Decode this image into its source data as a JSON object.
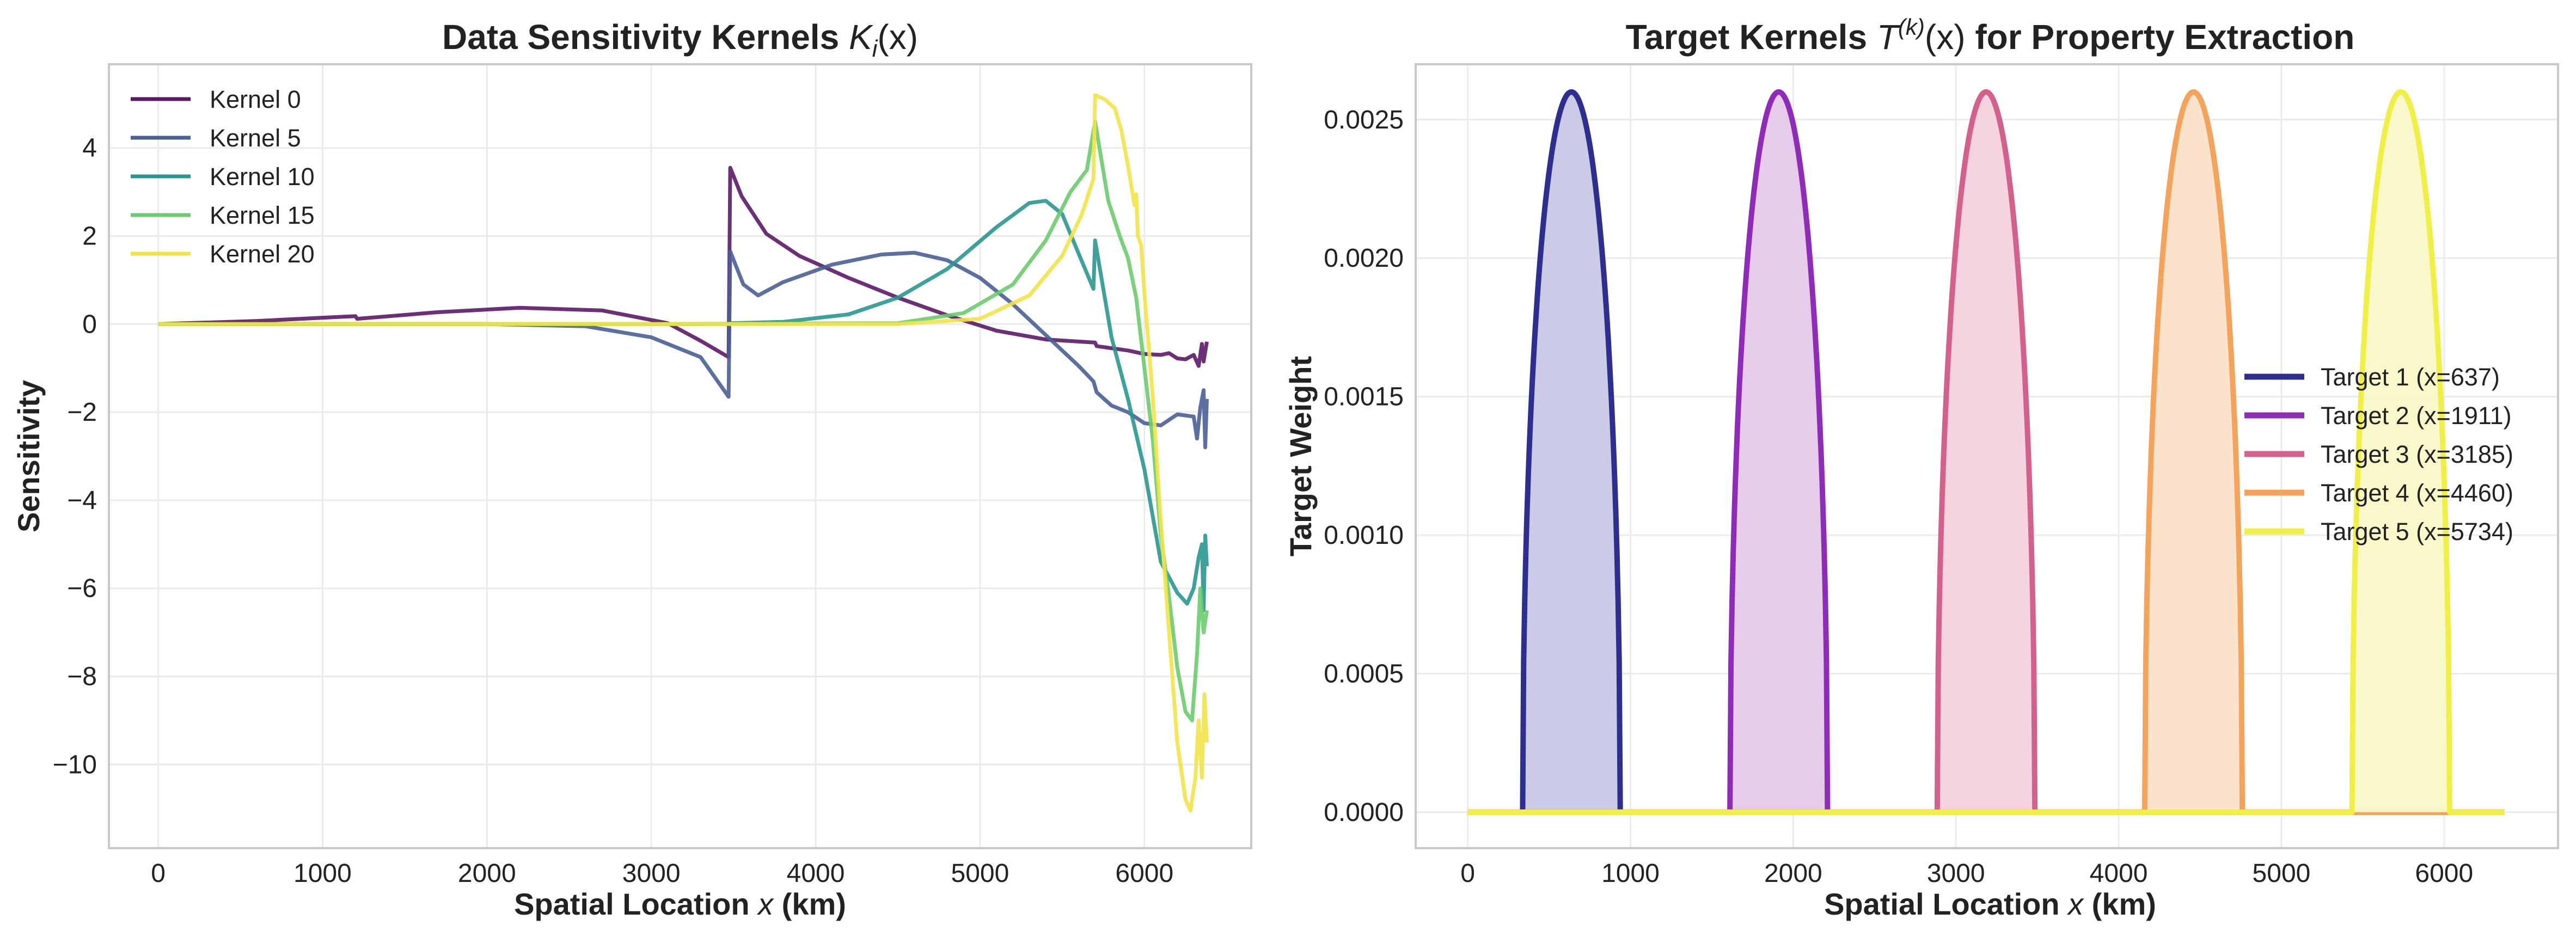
{
  "chart_data": [
    {
      "type": "line",
      "title_main": "Data Sensitivity Kernels ",
      "title_math": "K",
      "title_math_sub": "i",
      "title_math_tail": "(x)",
      "xlabel_pre": "Spatial Location ",
      "xlabel_var": "x",
      "xlabel_post": " (km)",
      "ylabel": "Sensitivity",
      "xlim": [
        -300,
        6650
      ],
      "ylim": [
        -11.9,
        5.9
      ],
      "xticks": [
        0,
        1000,
        2000,
        3000,
        4000,
        5000,
        6000
      ],
      "yticks": [
        4,
        2,
        0,
        -2,
        -4,
        -6,
        -8,
        -10
      ],
      "ytick_labels": [
        "4",
        "2",
        "0",
        "−2",
        "−4",
        "−6",
        "−8",
        "−10"
      ],
      "grid": true,
      "legend_position": "upper-left",
      "series": [
        {
          "name": "Kernel 0",
          "color": "#5b1a66",
          "points": [
            [
              0,
              0
            ],
            [
              600,
              0.07
            ],
            [
              1200,
              0.18
            ],
            [
              1210,
              0.12
            ],
            [
              1700,
              0.27
            ],
            [
              2200,
              0.37
            ],
            [
              2700,
              0.31
            ],
            [
              3100,
              0.02
            ],
            [
              3300,
              -0.38
            ],
            [
              3470,
              -0.75
            ],
            [
              3480,
              3.55
            ],
            [
              3550,
              2.9
            ],
            [
              3700,
              2.05
            ],
            [
              3900,
              1.55
            ],
            [
              4200,
              1.05
            ],
            [
              4500,
              0.6
            ],
            [
              4800,
              0.2
            ],
            [
              5100,
              -0.15
            ],
            [
              5400,
              -0.35
            ],
            [
              5700,
              -0.42
            ],
            [
              5710,
              -0.5
            ],
            [
              5900,
              -0.6
            ],
            [
              6000,
              -0.68
            ],
            [
              6100,
              -0.7
            ],
            [
              6150,
              -0.66
            ],
            [
              6200,
              -0.78
            ],
            [
              6250,
              -0.8
            ],
            [
              6300,
              -0.7
            ],
            [
              6330,
              -0.95
            ],
            [
              6350,
              -0.45
            ],
            [
              6360,
              -0.85
            ],
            [
              6380,
              -0.4
            ]
          ]
        },
        {
          "name": "Kernel 5",
          "color": "#4a5f93",
          "points": [
            [
              0,
              0
            ],
            [
              1000,
              0
            ],
            [
              2000,
              0
            ],
            [
              2600,
              -0.05
            ],
            [
              3000,
              -0.3
            ],
            [
              3300,
              -0.75
            ],
            [
              3470,
              -1.65
            ],
            [
              3480,
              1.65
            ],
            [
              3560,
              0.9
            ],
            [
              3650,
              0.65
            ],
            [
              3800,
              0.95
            ],
            [
              4100,
              1.35
            ],
            [
              4400,
              1.58
            ],
            [
              4600,
              1.62
            ],
            [
              4800,
              1.45
            ],
            [
              5000,
              1.05
            ],
            [
              5200,
              0.45
            ],
            [
              5400,
              -0.25
            ],
            [
              5600,
              -0.95
            ],
            [
              5690,
              -1.3
            ],
            [
              5710,
              -1.55
            ],
            [
              5800,
              -1.85
            ],
            [
              5900,
              -2.0
            ],
            [
              6000,
              -2.25
            ],
            [
              6100,
              -2.3
            ],
            [
              6200,
              -2.05
            ],
            [
              6300,
              -2.1
            ],
            [
              6320,
              -2.6
            ],
            [
              6340,
              -1.9
            ],
            [
              6360,
              -1.5
            ],
            [
              6370,
              -2.8
            ],
            [
              6380,
              -1.7
            ]
          ]
        },
        {
          "name": "Kernel 10",
          "color": "#2b9690",
          "points": [
            [
              0,
              0
            ],
            [
              3000,
              0
            ],
            [
              3470,
              0
            ],
            [
              3480,
              0.02
            ],
            [
              3800,
              0.05
            ],
            [
              4200,
              0.22
            ],
            [
              4500,
              0.6
            ],
            [
              4800,
              1.25
            ],
            [
              5100,
              2.2
            ],
            [
              5300,
              2.75
            ],
            [
              5400,
              2.8
            ],
            [
              5500,
              2.5
            ],
            [
              5600,
              1.6
            ],
            [
              5690,
              0.8
            ],
            [
              5700,
              1.9
            ],
            [
              5800,
              -0.3
            ],
            [
              5900,
              -1.7
            ],
            [
              6000,
              -3.3
            ],
            [
              6100,
              -5.4
            ],
            [
              6200,
              -6.1
            ],
            [
              6260,
              -6.35
            ],
            [
              6300,
              -6.0
            ],
            [
              6330,
              -5.3
            ],
            [
              6350,
              -5.0
            ],
            [
              6360,
              -6.5
            ],
            [
              6370,
              -4.8
            ],
            [
              6380,
              -5.5
            ]
          ]
        },
        {
          "name": "Kernel 15",
          "color": "#6bcb6e",
          "points": [
            [
              0,
              0
            ],
            [
              3000,
              0
            ],
            [
              4500,
              0.02
            ],
            [
              4900,
              0.25
            ],
            [
              5200,
              0.9
            ],
            [
              5400,
              1.9
            ],
            [
              5550,
              3.0
            ],
            [
              5650,
              3.5
            ],
            [
              5700,
              4.6
            ],
            [
              5780,
              2.8
            ],
            [
              5850,
              2.0
            ],
            [
              5900,
              1.5
            ],
            [
              5950,
              0.6
            ],
            [
              6000,
              -1.0
            ],
            [
              6050,
              -2.6
            ],
            [
              6100,
              -4.8
            ],
            [
              6150,
              -6.2
            ],
            [
              6200,
              -7.8
            ],
            [
              6250,
              -8.8
            ],
            [
              6290,
              -9.0
            ],
            [
              6320,
              -7.5
            ],
            [
              6340,
              -6.0
            ],
            [
              6360,
              -7.0
            ],
            [
              6380,
              -6.5
            ]
          ]
        },
        {
          "name": "Kernel 20",
          "color": "#f1e34a",
          "points": [
            [
              0,
              0
            ],
            [
              3000,
              0
            ],
            [
              4500,
              0
            ],
            [
              5000,
              0.12
            ],
            [
              5300,
              0.65
            ],
            [
              5500,
              1.55
            ],
            [
              5620,
              2.5
            ],
            [
              5690,
              3.3
            ],
            [
              5700,
              5.2
            ],
            [
              5760,
              5.1
            ],
            [
              5820,
              4.9
            ],
            [
              5860,
              4.4
            ],
            [
              5900,
              3.6
            ],
            [
              5940,
              2.7
            ],
            [
              5950,
              2.95
            ],
            [
              5960,
              2.0
            ],
            [
              5980,
              1.8
            ],
            [
              6000,
              0.7
            ],
            [
              6050,
              -1.6
            ],
            [
              6100,
              -4.5
            ],
            [
              6150,
              -7.0
            ],
            [
              6200,
              -9.5
            ],
            [
              6250,
              -10.8
            ],
            [
              6280,
              -11.05
            ],
            [
              6310,
              -10.3
            ],
            [
              6330,
              -9.0
            ],
            [
              6350,
              -10.3
            ],
            [
              6365,
              -8.4
            ],
            [
              6380,
              -9.5
            ]
          ]
        }
      ]
    },
    {
      "type": "area",
      "title_main": "Target Kernels ",
      "title_math": "T",
      "title_math_sup": "(k)",
      "title_math_tail": "(x)",
      "title_post": " for Property Extraction",
      "xlabel_pre": "Spatial Location ",
      "xlabel_var": "x",
      "xlabel_post": " (km)",
      "ylabel": "Target Weight",
      "xlim": [
        -320,
        6700
      ],
      "ylim": [
        -0.00013,
        0.0027
      ],
      "xticks": [
        0,
        1000,
        2000,
        3000,
        4000,
        5000,
        6000
      ],
      "yticks": [
        0.0,
        0.0005,
        0.001,
        0.0015,
        0.002,
        0.0025
      ],
      "ytick_labels": [
        "0.0000",
        "0.0005",
        "0.0010",
        "0.0015",
        "0.0020",
        "0.0025"
      ],
      "x_max": 6370,
      "peak": 0.0026,
      "half_width": 300,
      "grid": true,
      "legend_position": "center-right",
      "series": [
        {
          "name": "Target 1 (x=637)",
          "center": 637,
          "color": "#2e2e8f",
          "fill": "#c8c8e6"
        },
        {
          "name": "Target 2 (x=1911)",
          "center": 1911,
          "color": "#8e2cb8",
          "fill": "#e6c8ea"
        },
        {
          "name": "Target 3 (x=3185)",
          "center": 3185,
          "color": "#d2618e",
          "fill": "#f4d2dd"
        },
        {
          "name": "Target 4 (x=4460)",
          "center": 4460,
          "color": "#f4a35c",
          "fill": "#fbe0c8"
        },
        {
          "name": "Target 5 (x=5734)",
          "center": 5734,
          "color": "#f0ef48",
          "fill": "#f8f8c8"
        }
      ]
    }
  ]
}
